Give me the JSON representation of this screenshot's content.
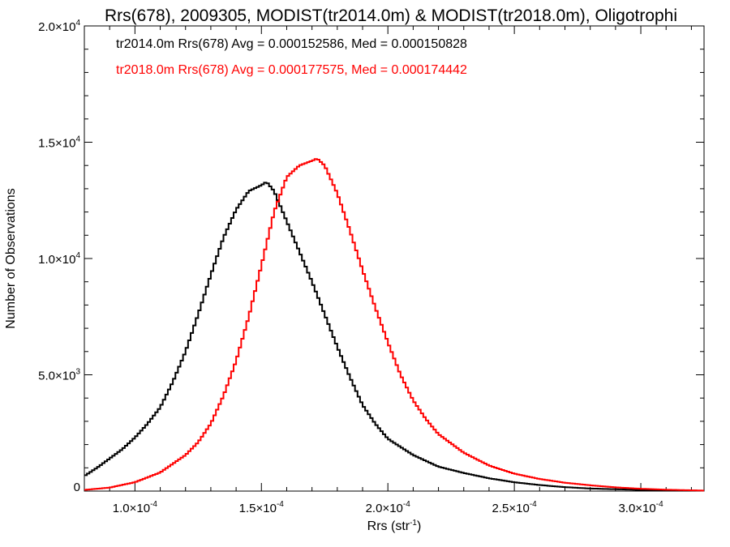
{
  "chart_data": {
    "type": "line",
    "title": "Rrs(678), 2009305, MODIST(tr2014.0m) & MODIST(tr2018.0m), Oligotrophi",
    "xlabel": "Rrs (str",
    "xlabel_sup": "-1",
    "xlabel_close": ")",
    "ylabel": "Number of Observations",
    "xlim": [
      8e-05,
      0.000325
    ],
    "ylim": [
      0,
      20000
    ],
    "x_ticks": [
      {
        "value": 0.0001,
        "mantissa": "1.0×10",
        "exp": "-4"
      },
      {
        "value": 0.00015,
        "mantissa": "1.5×10",
        "exp": "-4"
      },
      {
        "value": 0.0002,
        "mantissa": "2.0×10",
        "exp": "-4"
      },
      {
        "value": 0.00025,
        "mantissa": "2.5×10",
        "exp": "-4"
      },
      {
        "value": 0.0003,
        "mantissa": "3.0×10",
        "exp": "-4"
      }
    ],
    "y_ticks": [
      {
        "value": 0,
        "mantissa": "0",
        "exp": ""
      },
      {
        "value": 5000,
        "mantissa": "5.0×10",
        "exp": "3"
      },
      {
        "value": 10000,
        "mantissa": "1.0×10",
        "exp": "4"
      },
      {
        "value": 15000,
        "mantissa": "1.5×10",
        "exp": "4"
      },
      {
        "value": 20000,
        "mantissa": "2.0×10",
        "exp": "4"
      }
    ],
    "series": [
      {
        "name": "tr2014.0m",
        "color": "#000000",
        "stats_label": "tr2014.0m Rrs(678) Avg = 0.000152586, Med = 0.000150828",
        "x": [
          8e-05,
          8.5e-05,
          9e-05,
          9.5e-05,
          0.0001,
          0.000105,
          0.00011,
          0.000115,
          0.00012,
          0.000125,
          0.00013,
          0.000135,
          0.00014,
          0.000145,
          0.00015,
          0.000152,
          0.000155,
          0.00016,
          0.000165,
          0.00017,
          0.000175,
          0.00018,
          0.000185,
          0.00019,
          0.000195,
          0.0002,
          0.00021,
          0.00022,
          0.00023,
          0.00024,
          0.00025,
          0.00026,
          0.00027,
          0.00028,
          0.0003,
          0.000325
        ],
        "y": [
          650,
          1000,
          1400,
          1800,
          2300,
          2900,
          3600,
          4700,
          6000,
          7600,
          9300,
          10900,
          12100,
          12900,
          13150,
          13300,
          12900,
          11600,
          10300,
          9000,
          7600,
          6200,
          4900,
          3700,
          2900,
          2250,
          1550,
          1050,
          780,
          550,
          380,
          260,
          170,
          110,
          50,
          15
        ]
      },
      {
        "name": "tr2018.0m",
        "color": "#ff0000",
        "stats_label": "tr2018.0m Rrs(678) Avg = 0.000177575, Med = 0.000174442",
        "x": [
          8e-05,
          9e-05,
          0.0001,
          0.00011,
          0.00012,
          0.000125,
          0.00013,
          0.000135,
          0.00014,
          0.000145,
          0.00015,
          0.000155,
          0.00016,
          0.000165,
          0.00017,
          0.000172,
          0.000175,
          0.00018,
          0.000185,
          0.00019,
          0.000195,
          0.0002,
          0.000205,
          0.00021,
          0.000215,
          0.00022,
          0.00023,
          0.00024,
          0.00025,
          0.00026,
          0.00027,
          0.00028,
          0.00029,
          0.0003,
          0.00031,
          0.000325
        ],
        "y": [
          50,
          150,
          380,
          800,
          1550,
          2100,
          2900,
          4100,
          5600,
          7500,
          9700,
          12000,
          13500,
          14000,
          14200,
          14300,
          14000,
          12800,
          11200,
          9500,
          7900,
          6400,
          5000,
          3900,
          3100,
          2450,
          1650,
          1100,
          750,
          520,
          360,
          250,
          160,
          100,
          60,
          20
        ]
      }
    ]
  }
}
